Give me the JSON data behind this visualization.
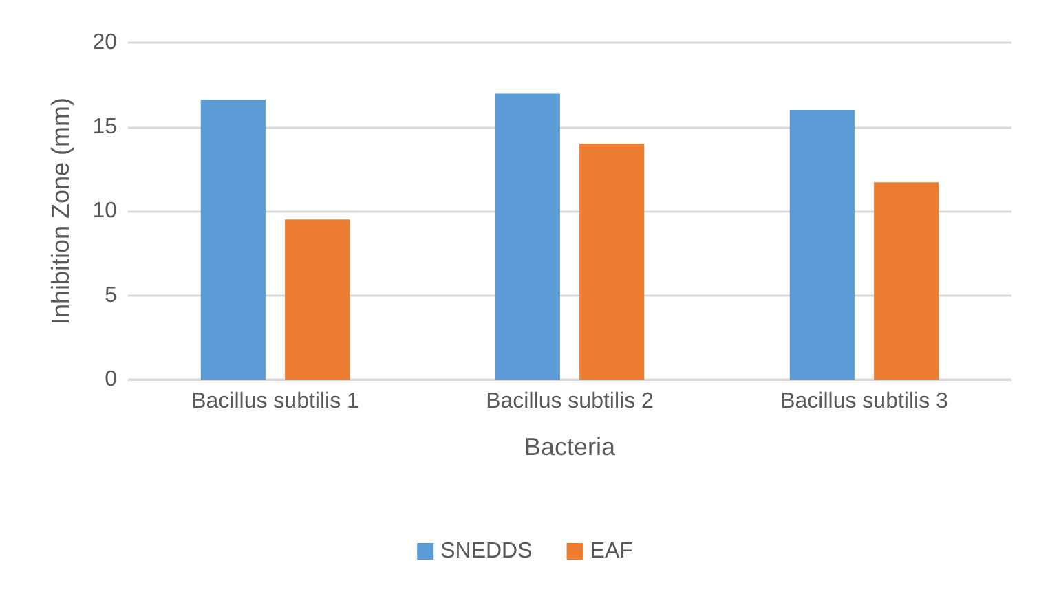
{
  "chart_data": {
    "type": "bar",
    "xlabel": "Bacteria",
    "ylabel": "Inhibition Zone (mm)",
    "categories": [
      "Bacillus subtilis 1",
      "Bacillus subtilis 2",
      "Bacillus subtilis 3"
    ],
    "series": [
      {
        "name": "SNEDDS",
        "color": "#5b9bd5",
        "values": [
          16.6,
          17,
          16
        ]
      },
      {
        "name": "EAF",
        "color": "#ed7d31",
        "values": [
          9.5,
          14,
          11.7
        ]
      }
    ],
    "ylim": [
      0,
      20
    ],
    "yticks": [
      0,
      5,
      10,
      15,
      20
    ],
    "grid": "y",
    "legend": "bottom"
  }
}
